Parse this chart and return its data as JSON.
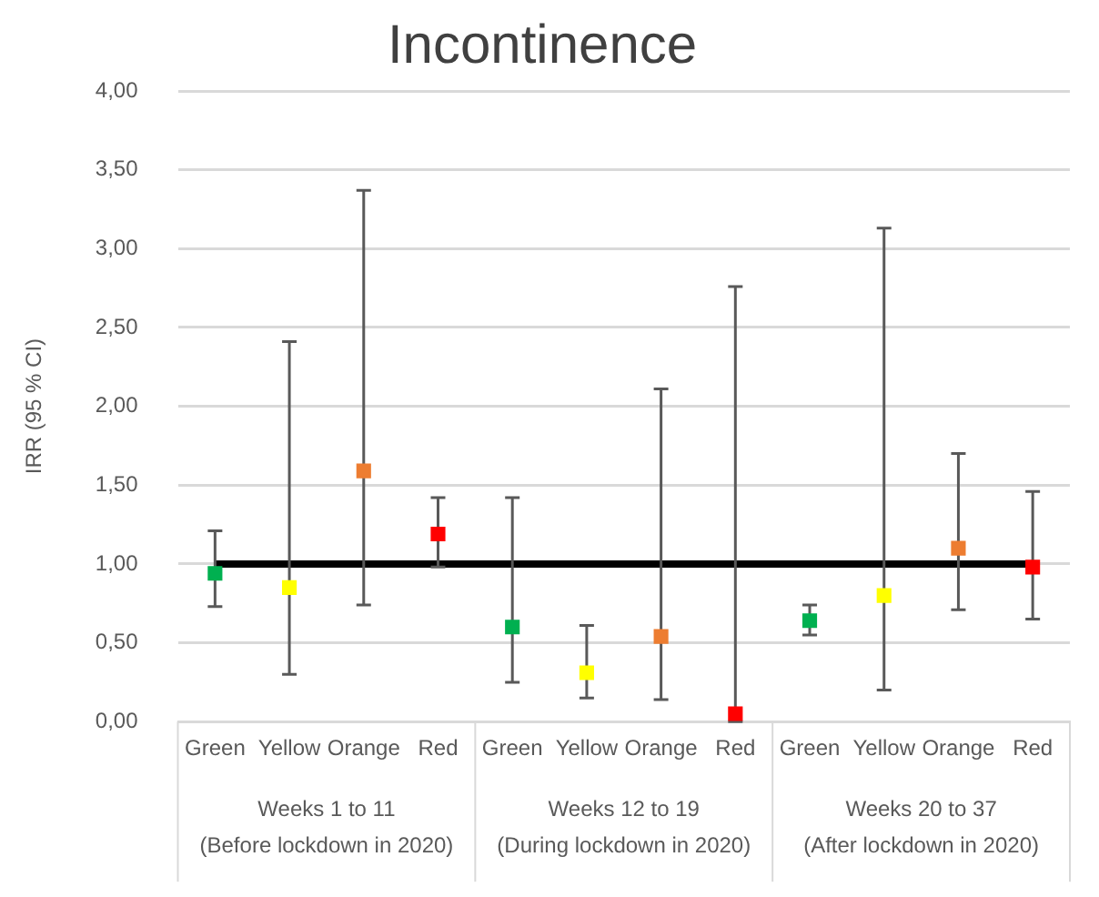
{
  "chart_data": {
    "type": "scatter",
    "title": "Incontinence",
    "ylabel": "IRR (95 % CI)",
    "categories": [
      "Green",
      "Yellow",
      "Orange",
      "Red",
      "Green",
      "Yellow",
      "Orange",
      "Red",
      "Green",
      "Yellow",
      "Orange",
      "Red"
    ],
    "values": [
      0.94,
      0.85,
      1.59,
      1.19,
      0.6,
      0.31,
      0.54,
      0.05,
      0.64,
      0.8,
      1.1,
      0.98
    ],
    "colors": [
      "#00b050",
      "#ffff00",
      "#ed7d31",
      "#ff0000",
      "#00b050",
      "#ffff00",
      "#ed7d31",
      "#ff0000",
      "#00b050",
      "#ffff00",
      "#ed7d31",
      "#ff0000"
    ],
    "errors": [
      [
        0.73,
        1.21
      ],
      [
        0.3,
        2.41
      ],
      [
        0.74,
        3.37
      ],
      [
        0.98,
        1.42
      ],
      [
        0.25,
        1.42
      ],
      [
        0.15,
        0.61
      ],
      [
        0.14,
        2.11
      ],
      [
        0,
        2.76
      ],
      [
        0.55,
        0.74
      ],
      [
        0.2,
        3.13
      ],
      [
        0.71,
        1.7
      ],
      [
        0.65,
        1.46
      ]
    ],
    "ylim": [
      0,
      4
    ],
    "yticks": [
      {
        "value": 0,
        "label": "0,00"
      },
      {
        "value": 0.5,
        "label": "0,50"
      },
      {
        "value": 1,
        "label": "1,00"
      },
      {
        "value": 1.5,
        "label": "1,50"
      },
      {
        "value": 2,
        "label": "2,00"
      },
      {
        "value": 2.5,
        "label": "2,50"
      },
      {
        "value": 3,
        "label": "3,00"
      },
      {
        "value": 3.5,
        "label": "3,50"
      },
      {
        "value": 4,
        "label": "4,00"
      }
    ],
    "ref_lines": [
      {
        "axis": "y",
        "value": 1,
        "color": "#000000"
      }
    ],
    "annotations": [
      "Weeks 1 to 11\n(Before lockdown in 2020)",
      "Weeks 12 to 19\n(During lockdown in 2020)",
      "Weeks 20 to 37\n(After lockdown in 2020)"
    ],
    "grid": "y",
    "legend": false,
    "marker": "square"
  }
}
